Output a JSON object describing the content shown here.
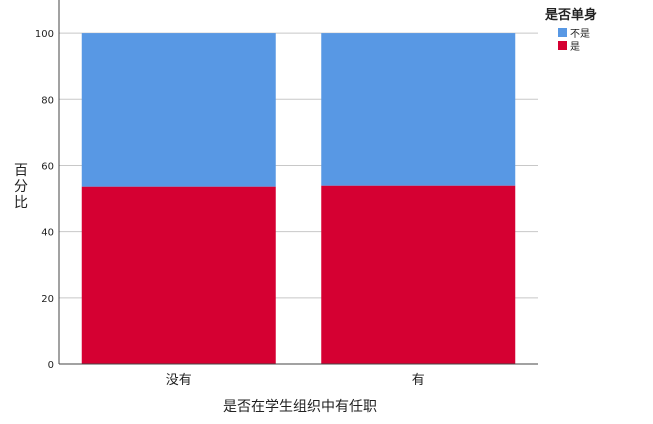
{
  "chart_data": {
    "type": "bar",
    "stacked": true,
    "categories": [
      "没有",
      "有"
    ],
    "series": [
      {
        "name": "是",
        "values": [
          53.6,
          53.9
        ],
        "color": "#D50032"
      },
      {
        "name": "不是",
        "values": [
          46.4,
          46.1
        ],
        "color": "#5898E4"
      }
    ],
    "xlabel": "是否在学生组织中有任职",
    "ylabel": "百分比",
    "ylim": [
      0,
      110
    ],
    "yticks": [
      "0",
      "20",
      "40",
      "60",
      "80",
      "100"
    ],
    "grid": true,
    "legend": {
      "title": "是否单身",
      "position": "top-right",
      "items": [
        {
          "label": "不是",
          "color": "#5898E4"
        },
        {
          "label": "是",
          "color": "#D50032"
        }
      ]
    }
  }
}
